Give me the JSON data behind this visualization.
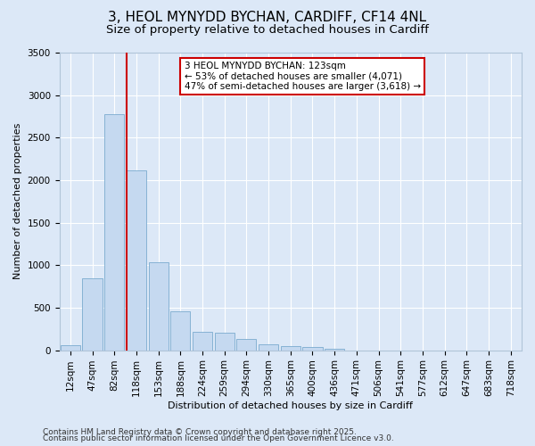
{
  "title_line1": "3, HEOL MYNYDD BYCHAN, CARDIFF, CF14 4NL",
  "title_line2": "Size of property relative to detached houses in Cardiff",
  "xlabel": "Distribution of detached houses by size in Cardiff",
  "ylabel": "Number of detached properties",
  "categories": [
    "12sqm",
    "47sqm",
    "82sqm",
    "118sqm",
    "153sqm",
    "188sqm",
    "224sqm",
    "259sqm",
    "294sqm",
    "330sqm",
    "365sqm",
    "400sqm",
    "436sqm",
    "471sqm",
    "506sqm",
    "541sqm",
    "577sqm",
    "612sqm",
    "647sqm",
    "683sqm",
    "718sqm"
  ],
  "values": [
    55,
    850,
    2780,
    2110,
    1035,
    460,
    220,
    210,
    130,
    70,
    50,
    35,
    20,
    0,
    0,
    0,
    0,
    0,
    0,
    0,
    0
  ],
  "bar_color": "#c5d9f0",
  "bar_edge_color": "#7aabcf",
  "vline_color": "#cc0000",
  "annotation_text": "3 HEOL MYNYDD BYCHAN: 123sqm\n← 53% of detached houses are smaller (4,071)\n47% of semi-detached houses are larger (3,618) →",
  "annotation_box_color": "white",
  "annotation_box_edge": "#cc0000",
  "ylim": [
    0,
    3500
  ],
  "yticks": [
    0,
    500,
    1000,
    1500,
    2000,
    2500,
    3000,
    3500
  ],
  "background_color": "#dce8f7",
  "grid_color": "#ffffff",
  "footer_line1": "Contains HM Land Registry data © Crown copyright and database right 2025.",
  "footer_line2": "Contains public sector information licensed under the Open Government Licence v3.0.",
  "title_fontsize": 11,
  "subtitle_fontsize": 9.5,
  "axis_label_fontsize": 8,
  "tick_fontsize": 7.5,
  "annotation_fontsize": 7.5,
  "footer_fontsize": 6.5
}
